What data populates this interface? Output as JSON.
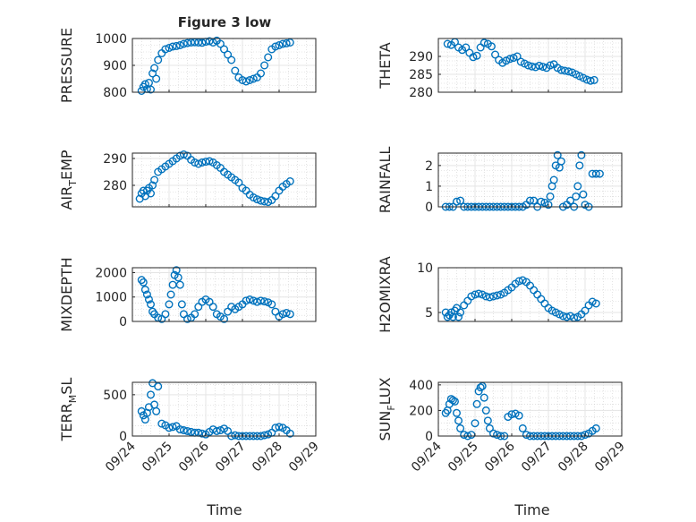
{
  "figure": {
    "title": "Figure 3 low",
    "xlabel": "Time",
    "x_tick_labels": [
      "09/24",
      "09/25",
      "09/26",
      "09/27",
      "09/28",
      "09/29"
    ],
    "marker_color": "#0072BD",
    "grid_color": "#e5e5e5"
  },
  "chart_data": [
    {
      "type": "scatter",
      "ylabel": "PRESSURE",
      "xlim": [
        0,
        5
      ],
      "ylim": [
        800,
        1000
      ],
      "yticks": [
        800,
        900,
        1000
      ],
      "series": [
        {
          "x": [
            0.25,
            0.3,
            0.35,
            0.4,
            0.45,
            0.5,
            0.55,
            0.6,
            0.65,
            0.7,
            0.8,
            0.9,
            1.0,
            1.1,
            1.2,
            1.3,
            1.4,
            1.5,
            1.6,
            1.7,
            1.8,
            1.9,
            2.0,
            2.1,
            2.2,
            2.3,
            2.4,
            2.5,
            2.6,
            2.7,
            2.8,
            2.9,
            3.0,
            3.1,
            3.2,
            3.3,
            3.4,
            3.5,
            3.6,
            3.7,
            3.8,
            3.9,
            4.0,
            4.1,
            4.2,
            4.3
          ],
          "y": [
            805,
            820,
            830,
            812,
            835,
            810,
            870,
            890,
            850,
            920,
            945,
            960,
            965,
            970,
            972,
            975,
            980,
            983,
            985,
            986,
            985,
            984,
            988,
            990,
            985,
            992,
            980,
            960,
            940,
            920,
            880,
            855,
            845,
            840,
            845,
            850,
            855,
            870,
            900,
            930,
            960,
            970,
            975,
            980,
            982,
            985
          ]
        }
      ]
    },
    {
      "type": "scatter",
      "ylabel": "THETA",
      "xlim": [
        0,
        5
      ],
      "ylim": [
        280,
        295
      ],
      "yticks": [
        280,
        285,
        290
      ],
      "series": [
        {
          "x": [
            0.25,
            0.35,
            0.45,
            0.55,
            0.65,
            0.75,
            0.85,
            0.95,
            1.05,
            1.15,
            1.25,
            1.35,
            1.45,
            1.55,
            1.65,
            1.75,
            1.85,
            1.95,
            2.05,
            2.15,
            2.25,
            2.35,
            2.45,
            2.55,
            2.65,
            2.75,
            2.85,
            2.95,
            3.05,
            3.15,
            3.25,
            3.35,
            3.45,
            3.55,
            3.65,
            3.75,
            3.85,
            3.95,
            4.05,
            4.15,
            4.25
          ],
          "y": [
            293.5,
            293.2,
            294.0,
            292.5,
            291.8,
            292.5,
            291.0,
            289.8,
            290.2,
            292.5,
            293.8,
            293.5,
            292.8,
            290.5,
            289.0,
            288.2,
            288.8,
            289.3,
            289.6,
            290.0,
            288.5,
            288.0,
            287.5,
            287.2,
            287.0,
            287.4,
            287.1,
            286.8,
            287.5,
            287.8,
            286.8,
            286.2,
            286.0,
            285.8,
            285.5,
            285.0,
            284.5,
            284.0,
            283.5,
            283.2,
            283.4
          ]
        }
      ]
    },
    {
      "type": "scatter",
      "ylabel": "AIR_TEMP",
      "xlim": [
        0,
        5
      ],
      "ylim": [
        272,
        292
      ],
      "yticks": [
        280,
        290
      ],
      "series": [
        {
          "x": [
            0.2,
            0.25,
            0.3,
            0.35,
            0.4,
            0.45,
            0.5,
            0.55,
            0.6,
            0.7,
            0.8,
            0.9,
            1.0,
            1.1,
            1.2,
            1.3,
            1.4,
            1.5,
            1.6,
            1.7,
            1.8,
            1.9,
            2.0,
            2.1,
            2.2,
            2.3,
            2.4,
            2.5,
            2.6,
            2.7,
            2.8,
            2.9,
            3.0,
            3.1,
            3.2,
            3.3,
            3.4,
            3.5,
            3.6,
            3.7,
            3.8,
            3.9,
            4.0,
            4.1,
            4.2,
            4.3
          ],
          "y": [
            275,
            277,
            278,
            276,
            278,
            279,
            277,
            280,
            282,
            285,
            286,
            287,
            288,
            289,
            290,
            291,
            291.5,
            291,
            289.5,
            288.5,
            288,
            288.5,
            288.8,
            289,
            288.5,
            287.5,
            286.5,
            285,
            284,
            283,
            282,
            281,
            279,
            278,
            276.5,
            275.5,
            274.8,
            274.3,
            274,
            273.8,
            274.5,
            276,
            278,
            279.5,
            280.5,
            281.5
          ]
        }
      ]
    },
    {
      "type": "scatter",
      "ylabel": "RAINFALL",
      "xlim": [
        0,
        5
      ],
      "ylim": [
        0,
        2.6
      ],
      "yticks": [
        0,
        1,
        2
      ],
      "series": [
        {
          "x": [
            0.2,
            0.3,
            0.4,
            0.5,
            0.6,
            0.7,
            0.8,
            0.9,
            1.0,
            1.1,
            1.2,
            1.3,
            1.4,
            1.5,
            1.6,
            1.7,
            1.8,
            1.9,
            2.0,
            2.1,
            2.2,
            2.3,
            2.4,
            2.5,
            2.6,
            2.7,
            2.8,
            2.9,
            3.0,
            3.05,
            3.1,
            3.15,
            3.2,
            3.25,
            3.3,
            3.35,
            3.4,
            3.5,
            3.6,
            3.7,
            3.75,
            3.8,
            3.85,
            3.9,
            3.95,
            4.0,
            4.1,
            4.2,
            4.3,
            4.4
          ],
          "y": [
            0,
            0,
            0,
            0.25,
            0.3,
            0,
            0,
            0,
            0,
            0,
            0,
            0,
            0,
            0,
            0,
            0,
            0,
            0,
            0,
            0,
            0,
            0,
            0.1,
            0.3,
            0.3,
            0,
            0.25,
            0.2,
            0.1,
            0.5,
            1.0,
            1.3,
            2.0,
            2.5,
            1.9,
            2.2,
            0,
            0.1,
            0.3,
            0,
            0.5,
            1.0,
            2.0,
            2.5,
            0.6,
            0.1,
            0,
            1.6,
            1.6,
            1.6
          ]
        }
      ]
    },
    {
      "type": "scatter",
      "ylabel": "MIXDEPTH",
      "xlim": [
        0,
        5
      ],
      "ylim": [
        0,
        2200
      ],
      "yticks": [
        0,
        1000,
        2000
      ],
      "series": [
        {
          "x": [
            0.25,
            0.3,
            0.35,
            0.4,
            0.45,
            0.5,
            0.55,
            0.6,
            0.7,
            0.8,
            0.9,
            1.0,
            1.05,
            1.1,
            1.15,
            1.2,
            1.25,
            1.3,
            1.35,
            1.4,
            1.5,
            1.6,
            1.7,
            1.8,
            1.9,
            2.0,
            2.1,
            2.2,
            2.3,
            2.4,
            2.5,
            2.6,
            2.7,
            2.8,
            2.9,
            3.0,
            3.1,
            3.2,
            3.3,
            3.4,
            3.5,
            3.6,
            3.7,
            3.8,
            3.9,
            4.0,
            4.1,
            4.2,
            4.3
          ],
          "y": [
            1700,
            1600,
            1300,
            1100,
            900,
            700,
            400,
            300,
            150,
            100,
            300,
            700,
            1100,
            1500,
            1900,
            2100,
            1800,
            1500,
            700,
            300,
            100,
            150,
            300,
            600,
            800,
            900,
            800,
            600,
            300,
            200,
            100,
            400,
            600,
            500,
            600,
            700,
            850,
            900,
            850,
            800,
            850,
            820,
            780,
            700,
            400,
            200,
            300,
            350,
            300
          ]
        }
      ]
    },
    {
      "type": "scatter",
      "ylabel": "H2OMIXRA",
      "xlim": [
        0,
        5
      ],
      "ylim": [
        4,
        10
      ],
      "yticks": [
        5,
        10
      ],
      "series": [
        {
          "x": [
            0.2,
            0.25,
            0.3,
            0.35,
            0.4,
            0.45,
            0.5,
            0.55,
            0.6,
            0.7,
            0.8,
            0.9,
            1.0,
            1.1,
            1.2,
            1.3,
            1.4,
            1.5,
            1.6,
            1.7,
            1.8,
            1.9,
            2.0,
            2.1,
            2.2,
            2.3,
            2.4,
            2.5,
            2.6,
            2.7,
            2.8,
            2.9,
            3.0,
            3.1,
            3.2,
            3.3,
            3.4,
            3.5,
            3.6,
            3.7,
            3.8,
            3.9,
            4.0,
            4.1,
            4.2,
            4.3
          ],
          "y": [
            5.0,
            4.5,
            4.7,
            5.0,
            4.5,
            5.2,
            5.5,
            4.5,
            5.0,
            5.8,
            6.3,
            6.8,
            7.0,
            7.1,
            7.0,
            6.8,
            6.7,
            6.8,
            6.9,
            7.0,
            7.2,
            7.5,
            7.8,
            8.2,
            8.5,
            8.6,
            8.4,
            8.0,
            7.5,
            7.0,
            6.5,
            6.0,
            5.5,
            5.2,
            5.0,
            4.8,
            4.6,
            4.5,
            4.6,
            4.4,
            4.5,
            4.8,
            5.2,
            5.8,
            6.2,
            6.0
          ]
        }
      ]
    },
    {
      "type": "scatter",
      "ylabel": "TERR_MSL",
      "xlim": [
        0,
        5
      ],
      "ylim": [
        0,
        650
      ],
      "yticks": [
        0,
        500
      ],
      "series": [
        {
          "x": [
            0.25,
            0.3,
            0.35,
            0.4,
            0.45,
            0.5,
            0.55,
            0.6,
            0.65,
            0.7,
            0.8,
            0.9,
            1.0,
            1.1,
            1.2,
            1.3,
            1.4,
            1.5,
            1.6,
            1.7,
            1.8,
            1.9,
            2.0,
            2.1,
            2.2,
            2.3,
            2.4,
            2.5,
            2.6,
            2.7,
            2.8,
            2.9,
            3.0,
            3.1,
            3.2,
            3.3,
            3.4,
            3.5,
            3.6,
            3.7,
            3.8,
            3.9,
            4.0,
            4.1,
            4.2,
            4.3
          ],
          "y": [
            300,
            250,
            200,
            280,
            350,
            500,
            640,
            380,
            300,
            600,
            150,
            130,
            100,
            110,
            120,
            80,
            70,
            60,
            50,
            40,
            40,
            30,
            20,
            50,
            80,
            60,
            70,
            90,
            60,
            0,
            10,
            0,
            0,
            0,
            0,
            0,
            0,
            0,
            10,
            20,
            40,
            100,
            110,
            100,
            70,
            30
          ]
        }
      ]
    },
    {
      "type": "scatter",
      "ylabel": "SUN_FLUX",
      "xlim": [
        0,
        5
      ],
      "ylim": [
        0,
        420
      ],
      "yticks": [
        0,
        200,
        400
      ],
      "series": [
        {
          "x": [
            0.2,
            0.25,
            0.3,
            0.35,
            0.4,
            0.45,
            0.5,
            0.55,
            0.6,
            0.7,
            0.8,
            0.9,
            1.0,
            1.05,
            1.1,
            1.15,
            1.2,
            1.25,
            1.3,
            1.35,
            1.4,
            1.5,
            1.6,
            1.7,
            1.8,
            1.9,
            2.0,
            2.1,
            2.2,
            2.3,
            2.4,
            2.5,
            2.6,
            2.7,
            2.8,
            2.9,
            3.0,
            3.1,
            3.2,
            3.3,
            3.4,
            3.5,
            3.6,
            3.7,
            3.8,
            3.9,
            4.0,
            4.1,
            4.2,
            4.3
          ],
          "y": [
            180,
            200,
            250,
            290,
            280,
            270,
            180,
            120,
            60,
            10,
            0,
            10,
            100,
            250,
            350,
            380,
            390,
            300,
            200,
            120,
            60,
            20,
            10,
            0,
            0,
            150,
            170,
            175,
            160,
            60,
            10,
            0,
            0,
            0,
            0,
            0,
            0,
            0,
            0,
            0,
            0,
            0,
            0,
            0,
            0,
            0,
            10,
            20,
            40,
            60
          ]
        }
      ]
    }
  ]
}
